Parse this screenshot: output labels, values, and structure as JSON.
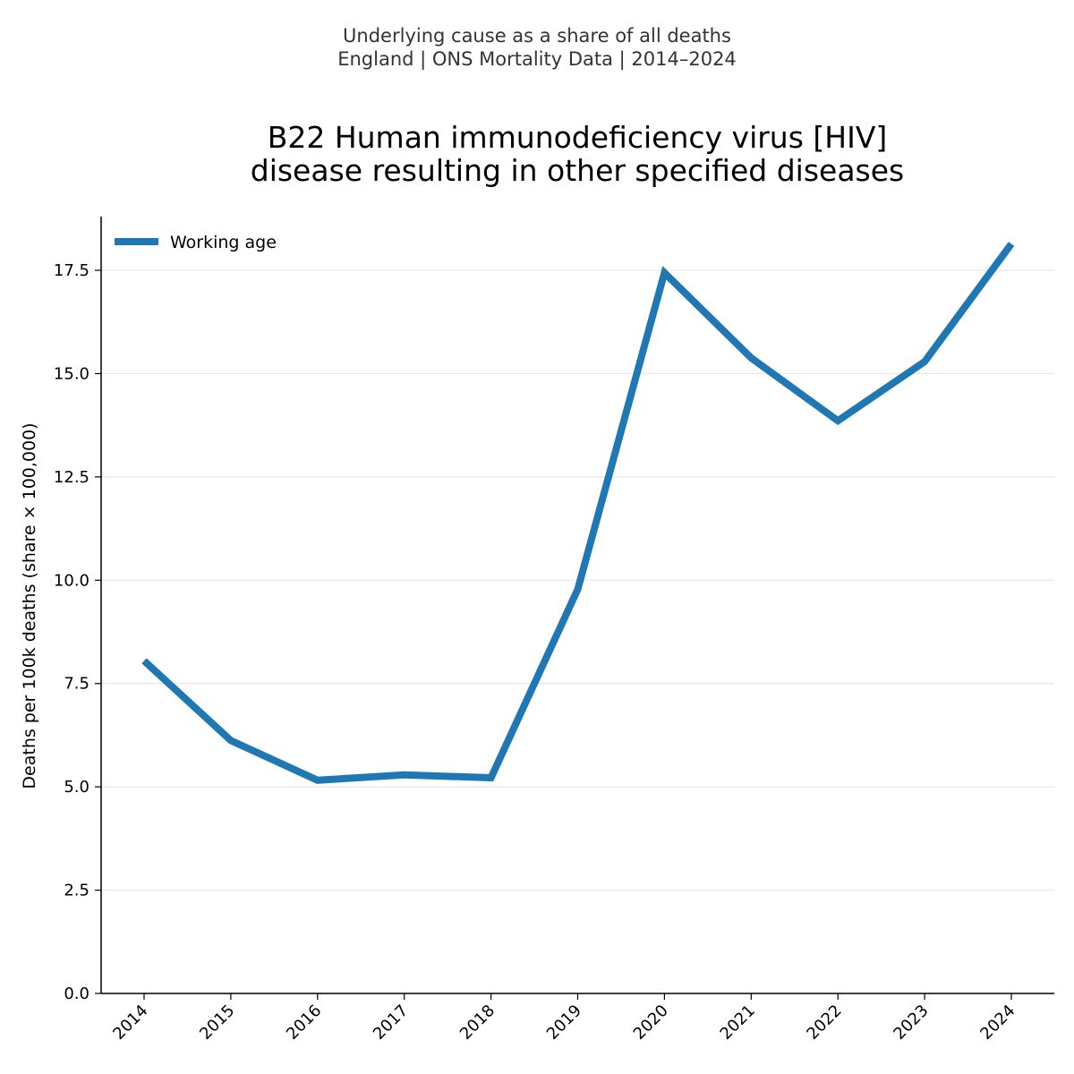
{
  "suptitle": {
    "line1": "Underlying cause as a share of all deaths",
    "line2": "England | ONS Mortality Data | 2014–2024"
  },
  "chart_data": {
    "type": "line",
    "title": [
      "B22 Human immunodeficiency virus [HIV]",
      "disease resulting in other specified diseases"
    ],
    "xlabel": "",
    "ylabel": "Deaths per 100k deaths (share × 100,000)",
    "x": [
      "2014",
      "2015",
      "2016",
      "2017",
      "2018",
      "2019",
      "2020",
      "2021",
      "2022",
      "2023",
      "2024"
    ],
    "series": [
      {
        "name": "Working age",
        "color": "#1f77b4",
        "values": [
          8.05,
          6.12,
          5.16,
          5.29,
          5.22,
          9.78,
          17.44,
          15.38,
          13.86,
          15.29,
          18.14
        ]
      }
    ],
    "ylim": [
      0,
      18.8
    ],
    "yticks": [
      0,
      2.5,
      5,
      7.5,
      10,
      12.5,
      15,
      17.5
    ],
    "ytick_labels": [
      "0.0",
      "2.5",
      "5.0",
      "7.5",
      "10.0",
      "12.5",
      "15.0",
      "17.5"
    ],
    "grid": "horizontal",
    "legend_position": "top-left",
    "colors": {
      "line": "#1f77b4",
      "grid": "#e6e6e6",
      "axis": "#000000"
    }
  }
}
